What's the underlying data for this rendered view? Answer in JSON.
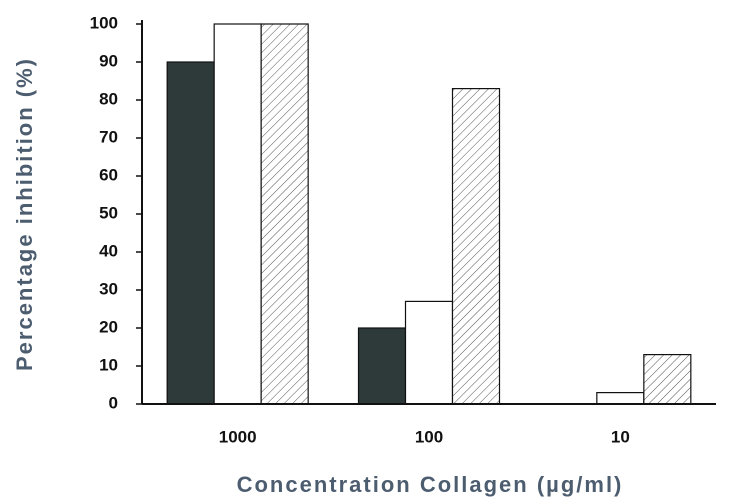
{
  "chart_data": {
    "type": "bar",
    "xlabel": "Concentration Collagen (µg/ml)",
    "ylabel": "Percentage inhibition (%)",
    "categories": [
      "1000",
      "100",
      "10"
    ],
    "series": [
      {
        "color": "#2e3a3a",
        "values": [
          90,
          20,
          0
        ]
      },
      {
        "color": "#ffffff",
        "values": [
          100,
          27,
          3
        ]
      },
      {
        "color": "#ffffff",
        "hatch": true,
        "values": [
          100,
          83,
          13
        ]
      }
    ],
    "ylim": [
      0,
      100
    ],
    "yticks": [
      0,
      10,
      20,
      30,
      40,
      50,
      60,
      70,
      80,
      90,
      100
    ],
    "grid": false
  }
}
